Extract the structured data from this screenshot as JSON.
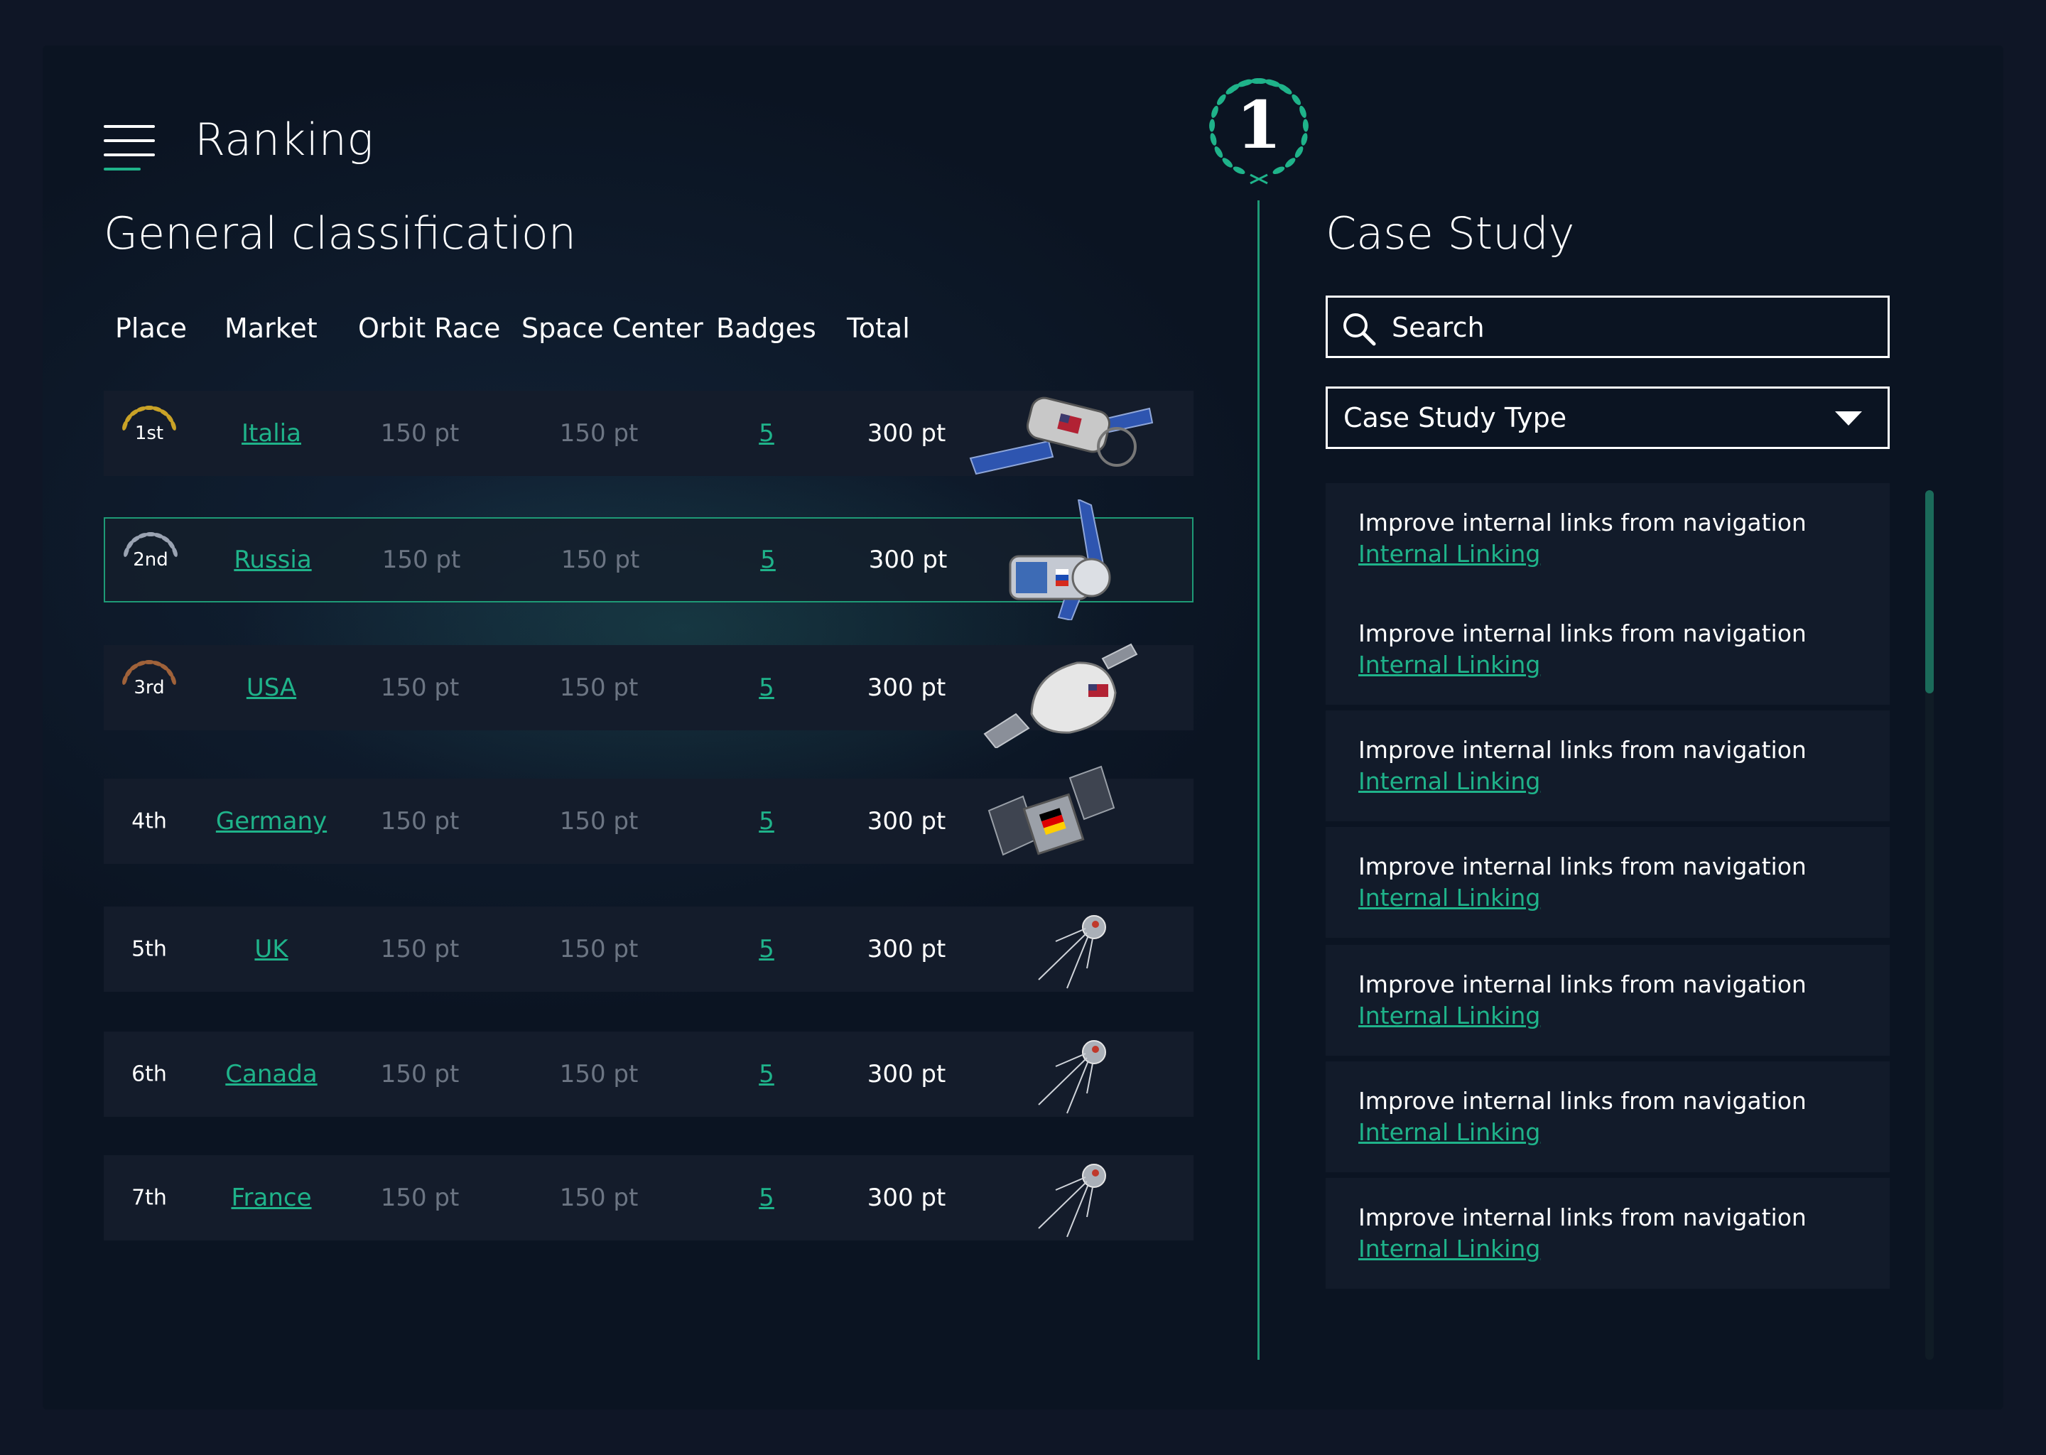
{
  "app": {
    "title": "Ranking"
  },
  "classification": {
    "title": "General classification",
    "columns": [
      "Place",
      "Market",
      "Orbit Race",
      "Space Center",
      "Badges",
      "Total"
    ],
    "rows": [
      {
        "place": "1st",
        "market": "Italia",
        "orbit": "150 pt",
        "space": "150 pt",
        "badges": "5",
        "total": "300 pt",
        "medal": "gold",
        "craft": "station"
      },
      {
        "place": "2nd",
        "market": "Russia",
        "orbit": "150 pt",
        "space": "150 pt",
        "badges": "5",
        "total": "300 pt",
        "medal": "silver",
        "craft": "capsule-winged"
      },
      {
        "place": "3rd",
        "market": "USA",
        "orbit": "150 pt",
        "space": "150 pt",
        "badges": "5",
        "total": "300 pt",
        "medal": "bronze",
        "craft": "capsule"
      },
      {
        "place": "4th",
        "market": "Germany",
        "orbit": "150 pt",
        "space": "150 pt",
        "badges": "5",
        "total": "300 pt",
        "medal": "none",
        "craft": "satellite"
      },
      {
        "place": "5th",
        "market": "UK",
        "orbit": "150 pt",
        "space": "150 pt",
        "badges": "5",
        "total": "300 pt",
        "medal": "none",
        "craft": "sputnik"
      },
      {
        "place": "6th",
        "market": "Canada",
        "orbit": "150 pt",
        "space": "150 pt",
        "badges": "5",
        "total": "300 pt",
        "medal": "none",
        "craft": "sputnik"
      },
      {
        "place": "7th",
        "market": "France",
        "orbit": "150 pt",
        "space": "150 pt",
        "badges": "5",
        "total": "300 pt",
        "medal": "none",
        "craft": "sputnik"
      }
    ]
  },
  "leader_badge": {
    "rank": "1"
  },
  "case_study": {
    "title": "Case Study",
    "search_placeholder": "Search",
    "type_select": "Case Study Type",
    "cards": [
      {
        "text": "Improve internal links from navigation",
        "link": "Internal Linking"
      },
      {
        "text": "Improve internal links from navigation",
        "link": "Internal Linking"
      },
      {
        "text": "Improve internal links from navigation",
        "link": "Internal Linking"
      },
      {
        "text": "Improve internal links from navigation",
        "link": "Internal Linking"
      },
      {
        "text": "Improve internal links from navigation",
        "link": "Internal Linking"
      },
      {
        "text": "Improve internal links from navigation",
        "link": "Internal Linking"
      },
      {
        "text": "Improve internal links from navigation",
        "link": "Internal Linking"
      }
    ],
    "scroll_position": 0
  },
  "colors": {
    "accent": "#1fb38a",
    "gold": "#c9a227",
    "silver": "#9aa3b2",
    "bronze": "#a0623a",
    "muted_text": "#6c7583",
    "row_bg": "#141c2b"
  },
  "icons": {
    "menu": "hamburger-menu-icon",
    "search": "magnifier-search-icon",
    "dropdown": "caret-down-icon",
    "wreath": "laurel-wreath-icon"
  }
}
